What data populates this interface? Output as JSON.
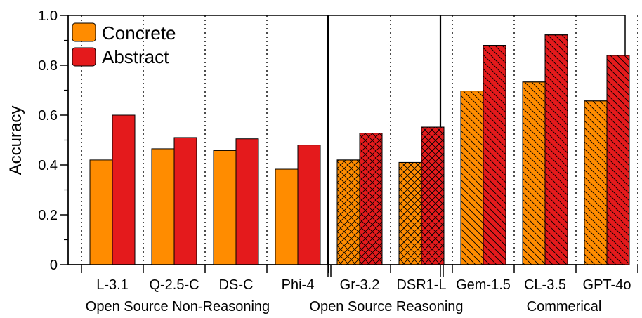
{
  "chart_data": {
    "type": "bar",
    "title": "",
    "xlabel": "",
    "ylabel": "Accuracy",
    "ylim": [
      0,
      1.0
    ],
    "yticks": [
      "0",
      "0.2",
      "0.4",
      "0.6",
      "0.8",
      "1.0"
    ],
    "yticks_values": [
      0,
      0.2,
      0.4,
      0.6,
      0.8,
      1.0
    ],
    "grid": false,
    "legend_position": "top-left",
    "categories": [
      "L-3.1",
      "Q-2.5-C",
      "DS-C",
      "Phi-4",
      "Gr-3.2",
      "DSR1-L",
      "Gem-1.5",
      "CL-3.5",
      "GPT-4o"
    ],
    "series": [
      {
        "name": "Concrete",
        "values": [
          0.42,
          0.465,
          0.458,
          0.383,
          0.42,
          0.41,
          0.697,
          0.733,
          0.657
        ]
      },
      {
        "name": "Abstract",
        "values": [
          0.6,
          0.51,
          0.505,
          0.48,
          0.528,
          0.552,
          0.88,
          0.922,
          0.84
        ]
      }
    ],
    "groups": [
      {
        "label": "Open Source Non-Reasoning",
        "pattern": "none"
      },
      {
        "label": "Open Source Reasoning",
        "pattern": "crosshatch"
      },
      {
        "label": "Commerical",
        "pattern": "diagonal"
      }
    ],
    "colors": {
      "Concrete": "#ff8c00",
      "Abstract": "#e41a1c"
    }
  }
}
